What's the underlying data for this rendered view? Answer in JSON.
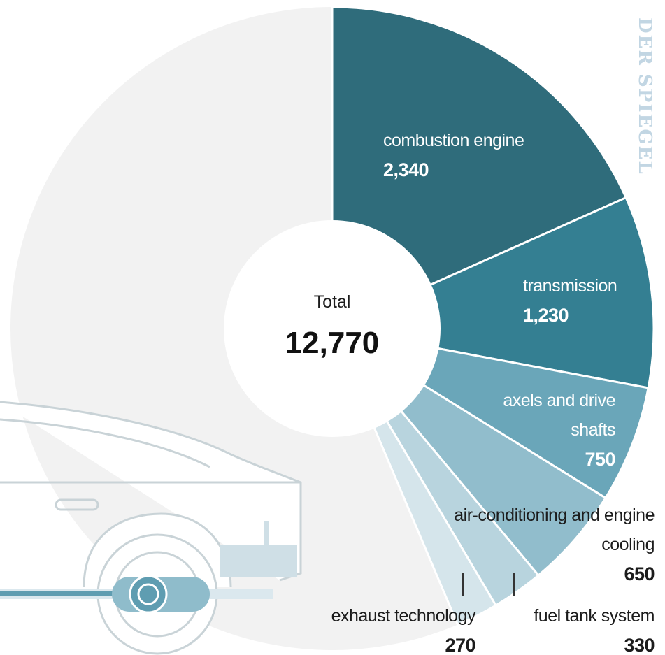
{
  "logo": "DER SPIEGEL",
  "chart_data": {
    "type": "donut",
    "total_label": "Total",
    "total": {
      "value": 12770,
      "label": "12,770"
    },
    "categories": [
      "combustion engine",
      "transmission",
      "axels and drive shafts",
      "air-conditioning and engine cooling",
      "fuel tank system",
      "exhaust technology"
    ],
    "values": [
      2340,
      1230,
      750,
      650,
      330,
      270
    ],
    "value_labels": [
      "2,340",
      "1,230",
      "750",
      "650",
      "330",
      "270"
    ],
    "colors": [
      "#2f6c7b",
      "#347f92",
      "#6aa6b9",
      "#91bdcc",
      "#b8d4de",
      "#d5e5eb"
    ]
  }
}
